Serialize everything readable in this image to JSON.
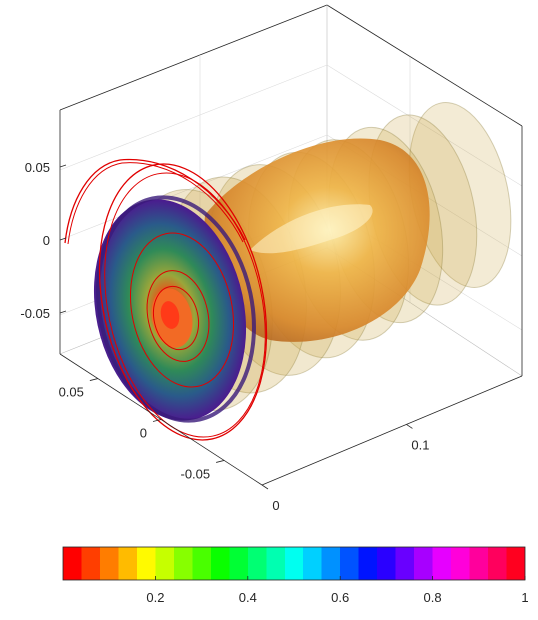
{
  "chart_data": {
    "type": "volume-slices",
    "axes": {
      "y": {
        "ticks": [
          {
            "value": 0.05,
            "label": "0.05"
          },
          {
            "value": 0,
            "label": "0"
          },
          {
            "value": -0.05,
            "label": "-0.05"
          }
        ]
      },
      "x": {
        "ticks": [
          {
            "value": 0.05,
            "label": "0.05"
          },
          {
            "value": 0,
            "label": "0"
          },
          {
            "value": -0.05,
            "label": "-0.05"
          }
        ]
      },
      "z": {
        "ticks": [
          {
            "value": 0,
            "label": "0"
          },
          {
            "value": 0.1,
            "label": "0.1"
          }
        ]
      }
    },
    "colorbar": {
      "colormap": "hsv",
      "range": [
        0,
        1
      ],
      "ticks": [
        {
          "value": 0.2,
          "label": "0.2"
        },
        {
          "value": 0.4,
          "label": "0.4"
        },
        {
          "value": 0.6,
          "label": "0.6"
        },
        {
          "value": 0.8,
          "label": "0.8"
        },
        {
          "value": 1,
          "label": "1"
        }
      ]
    },
    "slice_count": 8,
    "grid": true,
    "colors": {
      "streamline": "#e00000",
      "front_disk_outer": "#4b1b8e",
      "front_disk_mid": "#1f7a60",
      "front_disk_inner": "#7fae2a",
      "slice_fill": "#c9a441",
      "core": "#e05a1c",
      "axis": "#262626",
      "grid": "#dcdcdc"
    }
  }
}
